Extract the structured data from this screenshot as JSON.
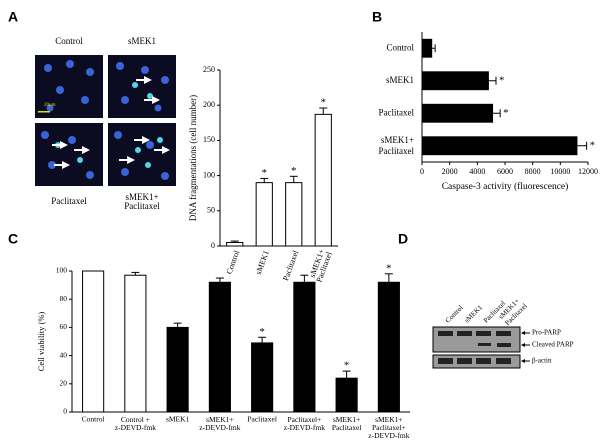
{
  "panels": [
    "A",
    "B",
    "C",
    "D"
  ],
  "microscopy": {
    "labels": [
      "Control",
      "sMEK1",
      "Paclitaxel",
      "sMEK1+\nPaclitaxel"
    ],
    "scale_bar": "20μm"
  },
  "western_blot": {
    "columns": [
      "Control",
      "sMEK1",
      "Paclitaxel",
      "sMEK1+\nPaclitaxel"
    ],
    "rows": [
      "Pro-PARP",
      "Cleaved PARP",
      "β-actin"
    ]
  },
  "chart_data": [
    {
      "type": "bar",
      "y_label": "DNA fragmentations  (cell number)",
      "categories": [
        "Control",
        "sMEK1",
        "Paclitaxel",
        "sMEK1+\nPaclitaxel"
      ],
      "values": [
        5,
        90,
        90,
        187
      ],
      "errors": [
        2,
        6,
        9,
        9
      ],
      "markers": [
        null,
        "*",
        "*",
        "*"
      ],
      "color": "#ffffff",
      "ylim": [
        0,
        250
      ],
      "yticks": [
        0,
        50,
        100,
        150,
        200,
        250
      ]
    },
    {
      "type": "bar",
      "orientation": "horizontal",
      "x_label": "Caspase-3 activity  (fluorescence)",
      "categories": [
        "Control",
        "sMEK1",
        "Paclitaxel",
        "sMEK1+\nPaclitaxel"
      ],
      "values": [
        700,
        4800,
        5100,
        11200
      ],
      "errors": [
        250,
        550,
        550,
        700
      ],
      "markers": [
        null,
        "*",
        "*",
        "*"
      ],
      "color": "#000000",
      "ylim": [
        0,
        12000
      ],
      "yticks": [
        0,
        2000,
        4000,
        6000,
        8000,
        10000,
        12000
      ]
    },
    {
      "type": "bar",
      "y_label": "Cell viability (%)",
      "categories": [
        "Control",
        "Control +\nz-DEVD-fmk",
        "sMEK1",
        "sMEK1+\nz-DEVD-fmk",
        "Paclitaxel",
        "Paclitaxel+\nz-DEVD-fmk",
        "sMEK1+\nPaclitaxel",
        "sMEK1+\nPaclitaxel+\nz-DEVD-fmk"
      ],
      "values": [
        100,
        97,
        60,
        92,
        49,
        92,
        24,
        92
      ],
      "errors": [
        0,
        2,
        3,
        3,
        4,
        5,
        5,
        6
      ],
      "markers": [
        null,
        null,
        null,
        null,
        "*",
        null,
        "*",
        "*"
      ],
      "colors": [
        "#ffffff",
        "#ffffff",
        "#000000",
        "#000000",
        "#000000",
        "#000000",
        "#000000",
        "#000000"
      ],
      "ylim": [
        0,
        100
      ],
      "yticks": [
        0,
        20,
        40,
        60,
        80,
        100
      ]
    }
  ]
}
